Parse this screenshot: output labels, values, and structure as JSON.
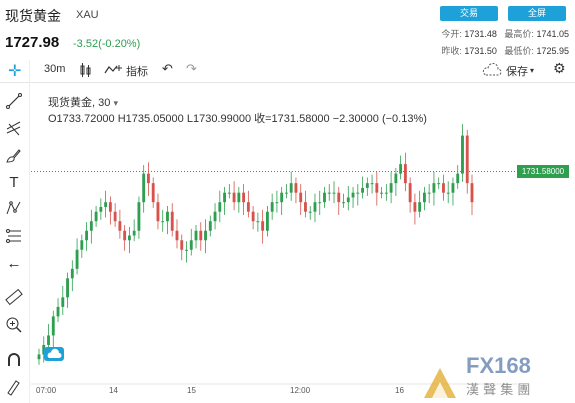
{
  "header": {
    "title": "现货黄金",
    "symbol": "XAU",
    "price": "1727.98",
    "change": "-3.52(-0.20%)",
    "btn_trade": "交易",
    "btn_fullscreen": "全屏",
    "stats": {
      "open_label": "今开:",
      "open": "1731.48",
      "high_label": "最高价:",
      "high": "1741.05",
      "prev_label": "昨收:",
      "prev": "1731.50",
      "low_label": "最低价:",
      "low": "1725.95"
    }
  },
  "toolbar": {
    "interval": "30m",
    "indicators": "指标",
    "save": "保存"
  },
  "legend": {
    "name": "现货黄金",
    "interval": "30",
    "ohlc": "O1733.72000  H1735.05000  L1730.99000  收=1731.58000  −2.30000 (−0.13%)"
  },
  "price_tag": "1731.58000",
  "time_axis": [
    "07:00",
    "14",
    "15",
    "12:00",
    "16"
  ],
  "watermark": {
    "brand": "FX168",
    "sub": "漢 聲 集 團"
  },
  "colors": {
    "up": "#2e9e4f",
    "down": "#d6524a",
    "accent": "#1ea0d8"
  },
  "chart_data": {
    "type": "candlestick",
    "interval": "30",
    "ohlc_current": {
      "open": 1733.72,
      "high": 1735.05,
      "low": 1730.99,
      "close": 1731.58,
      "change": -2.3,
      "change_pct": -0.13
    },
    "last_price_line": 1731.58,
    "y_range": [
      1716,
      1747
    ],
    "x_ticks": [
      "07:00",
      "14",
      "15",
      "12:00",
      "16"
    ]
  }
}
